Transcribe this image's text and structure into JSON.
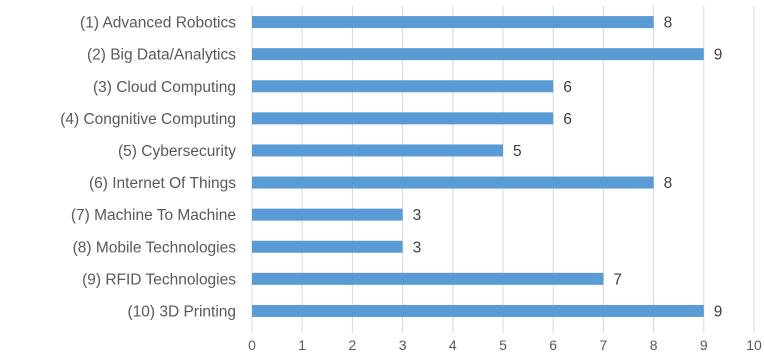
{
  "chart_data": {
    "type": "bar",
    "orientation": "horizontal",
    "title": "",
    "xlabel": "",
    "ylabel": "",
    "categories": [
      "(1) Advanced Robotics",
      "(2) Big Data/Analytics",
      "(3) Cloud Computing",
      "(4) Congnitive Computing",
      "(5) Cybersecurity",
      "(6) Internet Of Things",
      "(7) Machine To Machine",
      "(8) Mobile Technologies",
      "(9) RFID Technologies",
      "(10) 3D Printing"
    ],
    "values": [
      8,
      9,
      6,
      6,
      5,
      8,
      3,
      3,
      7,
      9
    ],
    "xlim": [
      0,
      10
    ],
    "xticks": [
      "0",
      "1",
      "2",
      "3",
      "4",
      "5",
      "6",
      "7",
      "8",
      "9",
      "10"
    ],
    "data_labels": [
      "8",
      "9",
      "6",
      "6",
      "5",
      "8",
      "3",
      "3",
      "7",
      "9"
    ],
    "grid": "vertical",
    "legend": "none",
    "colors": {
      "bar": "#5b9bd5",
      "grid": "#d9d9d9",
      "text": "#595959"
    }
  }
}
